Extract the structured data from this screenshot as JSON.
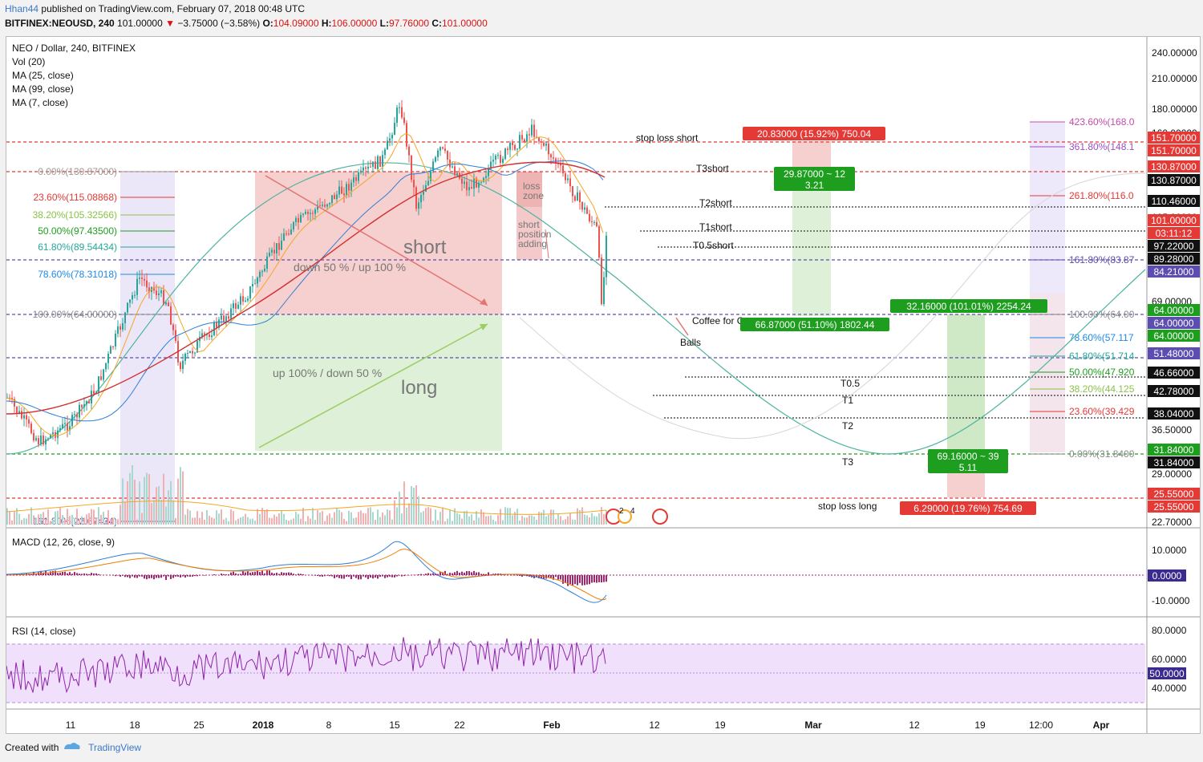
{
  "header": {
    "user": "Hhan44",
    "published": "published on TradingView.com, February 07, 2018 00:48 UTC",
    "symbol": "BITFINEX:NEOUSD, 240",
    "last": "101.00000",
    "change": "−3.75000 (−3.58%)",
    "o_label": "O:",
    "o": "104.09000",
    "h_label": "H:",
    "h": "106.00000",
    "l_label": "L:",
    "l": "97.76000",
    "c_label": "C:",
    "c": "101.00000"
  },
  "legend": {
    "title": "NEO / Dollar, 240, BITFINEX",
    "vol": "Vol (20)",
    "ma25": "MA (25, close)",
    "ma99": "MA (99, close)",
    "ma7": "MA (7, close)"
  },
  "price_axis": [
    "240.00000",
    "210.00000",
    "180.00000",
    "160.00000",
    "140.00000",
    "105.00000",
    "69.00000",
    "36.50000",
    "29.00000",
    "22.70000"
  ],
  "price_tags": [
    {
      "text": "151.70000",
      "bg": "#e53935",
      "fg": "#ffffff"
    },
    {
      "text": "151.70000",
      "bg": "#e53935",
      "fg": "#ffffff"
    },
    {
      "text": "130.87000",
      "bg": "#e53935",
      "fg": "#ffffff"
    },
    {
      "text": "130.87000",
      "bg": "#111111",
      "fg": "#ffffff"
    },
    {
      "text": "110.46000",
      "bg": "#111111",
      "fg": "#ffffff"
    },
    {
      "text": "101.00000",
      "bg": "#e53935",
      "fg": "#ffffff"
    },
    {
      "text": "03:11:12",
      "bg": "#e53935",
      "fg": "#ffffff"
    },
    {
      "text": "97.22000",
      "bg": "#111111",
      "fg": "#ffffff"
    },
    {
      "text": "89.28000",
      "bg": "#111111",
      "fg": "#ffffff"
    },
    {
      "text": "84.21000",
      "bg": "#5c4db1",
      "fg": "#ffffff"
    },
    {
      "text": "64.00000",
      "bg": "#1e9e1e",
      "fg": "#ffffff"
    },
    {
      "text": "64.00000",
      "bg": "#5c4db1",
      "fg": "#ffffff"
    },
    {
      "text": "64.00000",
      "bg": "#1e9e1e",
      "fg": "#ffffff"
    },
    {
      "text": "51.48000",
      "bg": "#5c4db1",
      "fg": "#ffffff"
    },
    {
      "text": "46.66000",
      "bg": "#111111",
      "fg": "#ffffff"
    },
    {
      "text": "42.78000",
      "bg": "#111111",
      "fg": "#ffffff"
    },
    {
      "text": "38.04000",
      "bg": "#111111",
      "fg": "#ffffff"
    },
    {
      "text": "31.84000",
      "bg": "#1e9e1e",
      "fg": "#ffffff"
    },
    {
      "text": "31.84000",
      "bg": "#111111",
      "fg": "#ffffff"
    },
    {
      "text": "25.55000",
      "bg": "#e53935",
      "fg": "#ffffff"
    },
    {
      "text": "25.55000",
      "bg": "#e53935",
      "fg": "#ffffff"
    }
  ],
  "time_axis": [
    "11",
    "18",
    "25",
    "2018",
    "8",
    "15",
    "22",
    "Feb",
    "12",
    "19",
    "Mar",
    "12",
    "19",
    "12:00",
    "Apr"
  ],
  "fib_left": [
    "0.00%(130.87000)",
    "23.60%(115.08868)",
    "38.20%(105.32566)",
    "50.00%(97.43500)",
    "61.80%(89.54434)",
    "78.60%(78.31018)",
    "100.00%(64.00000)",
    "161.80%(22.67434)"
  ],
  "fib_right_top": [
    "423.60%(168.0",
    "361.80%(148.1",
    "261.80%(116.0",
    "161.80%(83.87",
    "100.00%(64.00"
  ],
  "fib_right_bottom": [
    "78.60%(57.117",
    "61.80%(51.714",
    "50.00%(47.920",
    "38.20%(44.125",
    "23.60%(39.429",
    "0.00%(31.8400"
  ],
  "annotations": {
    "stop_loss_short": "stop loss short",
    "t3short": "T3short",
    "t2short": "T2short",
    "t1short": "T1short",
    "t05short": "T0.5short",
    "short": "short",
    "long": "long",
    "down50": "down 50 % / up 100 %",
    "up100": "up 100% / down 50 %",
    "loss_zone": "loss\nzone",
    "short_adding": "short\nposition\nadding",
    "coffee": "Coffee for Genes",
    "balls": "Balls",
    "t05": "T0.5",
    "t1": "T1",
    "t2": "T2",
    "t3": "T3",
    "stop_loss_long": "stop loss long"
  },
  "boxes": {
    "short_stop": "20.83000 (15.92%) 750.04",
    "short_rr1": "29.87000 ~ 12",
    "short_rr2": "3.21",
    "short_target": "66.87000 (51.10%) 1802.44",
    "long_target": "32.16000 (101.01%) 2254.24",
    "long_rr1": "69.16000 ~ 39",
    "long_rr2": "5.11",
    "long_stop": "6.29000 (19.76%) 754.69"
  },
  "macd": {
    "title": "MACD (12, 26, close, 9)",
    "axis": [
      "10.0000",
      "0.0000",
      "-10.0000"
    ]
  },
  "rsi": {
    "title": "RSI (14, close)",
    "axis": [
      "80.0000",
      "60.0000",
      "50.0000",
      "40.0000"
    ]
  },
  "events": [
    "2",
    "4"
  ],
  "footer": {
    "created": "Created with",
    "brand": "TradingView"
  },
  "colors": {
    "bear": "#ef5350",
    "bull": "#26a69a",
    "short_zone": "#f6cfcf",
    "long_zone": "#dff0d8",
    "rsi_band": "#f0e0fb"
  }
}
